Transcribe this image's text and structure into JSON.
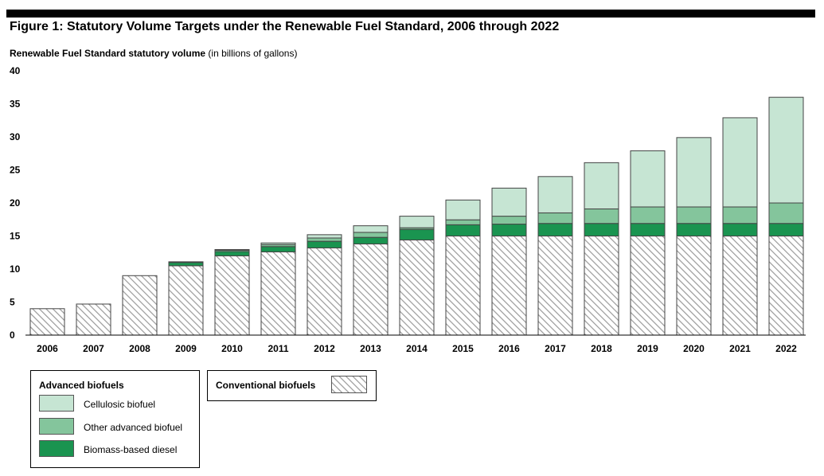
{
  "figure_title": "Figure 1: Statutory Volume Targets under the Renewable Fuel Standard, 2006 through 2022",
  "colors": {
    "cellulosic": "#c6e5d3",
    "other_advanced": "#84c59c",
    "biomass_diesel": "#1a9450",
    "conventional_hatch": "#9a9a9a",
    "bar_outline": "#444444"
  },
  "legend": {
    "advanced_title": "Advanced biofuels",
    "conventional_title": "Conventional biofuels",
    "items": [
      "Cellulosic biofuel",
      "Other advanced biofuel",
      "Biomass-based diesel"
    ]
  },
  "chart_data": {
    "type": "bar",
    "stacked": true,
    "title": "Figure 1: Statutory Volume Targets under the Renewable Fuel Standard, 2006 through 2022",
    "ylabel": "Renewable Fuel Standard statutory volume",
    "ylabel_units": "(in billions of gallons)",
    "ylim": [
      0,
      40
    ],
    "yticks": [
      0,
      5,
      10,
      15,
      20,
      25,
      30,
      35,
      40
    ],
    "grid": false,
    "legend_position": "bottom-left",
    "categories": [
      "2006",
      "2007",
      "2008",
      "2009",
      "2010",
      "2011",
      "2012",
      "2013",
      "2014",
      "2015",
      "2016",
      "2017",
      "2018",
      "2019",
      "2020",
      "2021",
      "2022"
    ],
    "series": [
      {
        "name": "Conventional biofuels",
        "values": [
          4.0,
          4.7,
          9.0,
          10.5,
          12.0,
          12.6,
          13.2,
          13.8,
          14.4,
          15.0,
          15.0,
          15.0,
          15.0,
          15.0,
          15.0,
          15.0,
          15.0
        ]
      },
      {
        "name": "Biomass-based diesel",
        "values": [
          0,
          0,
          0,
          0.5,
          0.65,
          0.8,
          1.0,
          1.0,
          1.6,
          1.7,
          1.8,
          1.9,
          1.9,
          1.9,
          1.9,
          1.9,
          1.9
        ]
      },
      {
        "name": "Other advanced biofuel",
        "values": [
          0,
          0,
          0,
          0.1,
          0.2,
          0.3,
          0.5,
          0.75,
          0.25,
          0.75,
          1.2,
          1.6,
          2.2,
          2.5,
          2.5,
          2.5,
          3.1
        ]
      },
      {
        "name": "Cellulosic biofuel",
        "values": [
          0,
          0,
          0,
          0,
          0.1,
          0.25,
          0.5,
          1.0,
          1.75,
          3.0,
          4.25,
          5.5,
          7.0,
          8.5,
          10.5,
          13.5,
          16.0
        ]
      }
    ]
  }
}
